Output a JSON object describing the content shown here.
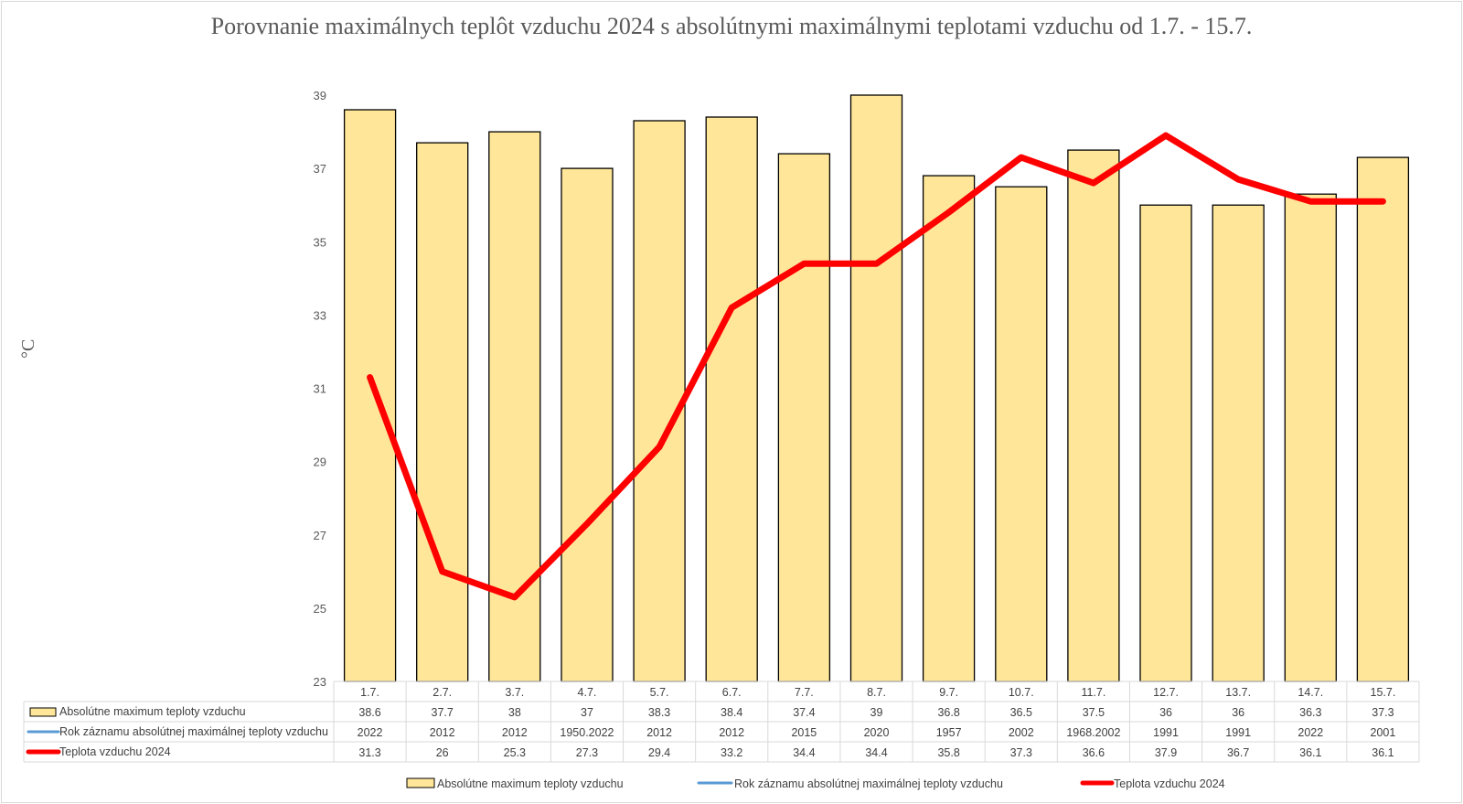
{
  "chart_data": {
    "type": "bar",
    "title": "Porovnanie maximálnych teplôt vzduchu 2024 s absolútnymi maximálnymi teplotami vzduchu od 1.7. - 15.7.",
    "ylabel": "°C",
    "xlabel": "",
    "ylim": [
      23,
      39
    ],
    "yticks": [
      23,
      25,
      27,
      29,
      31,
      33,
      35,
      37,
      39
    ],
    "grid": false,
    "legend_position": "bottom",
    "categories": [
      "1.7.",
      "2.7.",
      "3.7.",
      "4.7.",
      "5.7.",
      "6.7.",
      "7.7.",
      "8.7.",
      "9.7.",
      "10.7.",
      "11.7.",
      "12.7.",
      "13.7.",
      "14.7.",
      "15.7."
    ],
    "series": [
      {
        "name": "Absolútne maximum teploty vzduchu",
        "type": "bar",
        "color": "#ffe699",
        "values": [
          38.6,
          37.7,
          38,
          37,
          38.3,
          38.4,
          37.4,
          39,
          36.8,
          36.5,
          37.5,
          36,
          36,
          36.3,
          37.3
        ]
      },
      {
        "name": "Rok záznamu absolútnej maximálnej teploty vzduchu",
        "type": "table-only",
        "color": "#5b9bd5",
        "values": [
          "2022",
          "2012",
          "2012",
          "1950.2022",
          "2012",
          "2012",
          "2015",
          "2020",
          "1957",
          "2002",
          "1968.2002",
          "1991",
          "1991",
          "2022",
          "2001"
        ]
      },
      {
        "name": "Teplota vzduchu 2024",
        "type": "line",
        "color": "#ff0000",
        "values": [
          31.3,
          26,
          25.3,
          27.3,
          29.4,
          33.2,
          34.4,
          34.4,
          35.8,
          37.3,
          36.6,
          37.9,
          36.7,
          36.1,
          36.1
        ]
      }
    ],
    "bar_table_values": [
      "38.6",
      "37.7",
      "38",
      "37",
      "38.3",
      "38.4",
      "37.4",
      "39",
      "36.8",
      "36.5",
      "37.5",
      "36",
      "36",
      "36.3",
      "37.3"
    ],
    "line_table_values": [
      "31.3",
      "26",
      "25.3",
      "27.3",
      "29.4",
      "33.2",
      "34.4",
      "34.4",
      "35.8",
      "37.3",
      "36.6",
      "37.9",
      "36.7",
      "36.1",
      "36.1"
    ]
  }
}
